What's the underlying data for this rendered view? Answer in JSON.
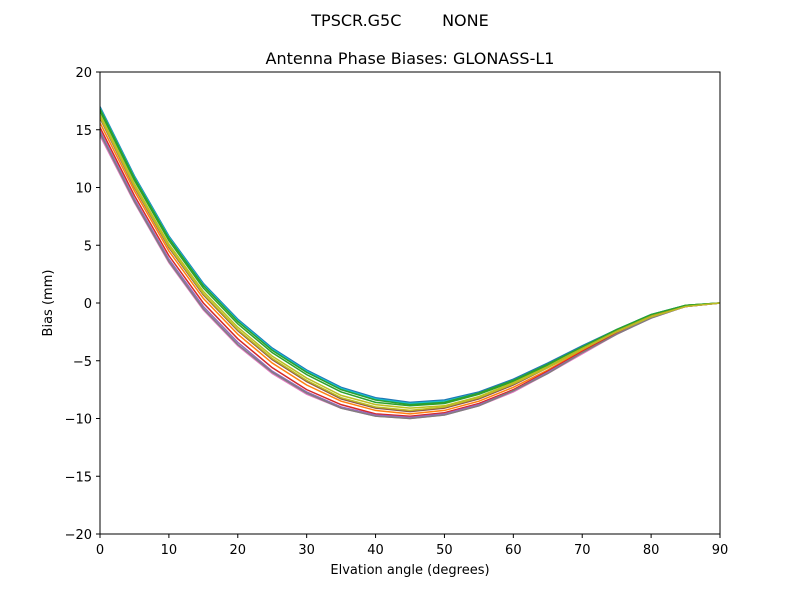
{
  "chart_data": {
    "type": "line",
    "suptitle": "TPSCR.G5C        NONE",
    "title": "Antenna Phase Biases: GLONASS-L1",
    "xlabel": "Elvation angle (degrees)",
    "ylabel": "Bias (mm)",
    "xlim": [
      0,
      90
    ],
    "ylim": [
      -20,
      20
    ],
    "xticks": [
      0,
      10,
      20,
      30,
      40,
      50,
      60,
      70,
      80,
      90
    ],
    "yticks": [
      -20,
      -15,
      -10,
      -5,
      0,
      5,
      10,
      15,
      20
    ],
    "xtick_labels": [
      "0",
      "10",
      "20",
      "30",
      "40",
      "50",
      "60",
      "70",
      "80",
      "90"
    ],
    "ytick_labels": [
      "−20",
      "−15",
      "−10",
      "−5",
      "0",
      "5",
      "10",
      "15",
      "20"
    ],
    "grid": false,
    "x": [
      0,
      5,
      10,
      15,
      20,
      25,
      30,
      35,
      40,
      45,
      50,
      55,
      60,
      65,
      70,
      75,
      80,
      85,
      90
    ],
    "series": [
      {
        "color": "#1f77b4",
        "values": [
          17.0,
          11.0,
          5.8,
          1.7,
          -1.4,
          -3.9,
          -5.8,
          -7.3,
          -8.2,
          -8.6,
          -8.4,
          -7.7,
          -6.6,
          -5.2,
          -3.7,
          -2.3,
          -1.0,
          -0.2,
          0.0
        ]
      },
      {
        "color": "#17becf",
        "values": [
          16.9,
          10.9,
          5.7,
          1.6,
          -1.5,
          -4.0,
          -5.9,
          -7.4,
          -8.3,
          -8.7,
          -8.5,
          -7.8,
          -6.7,
          -5.3,
          -3.8,
          -2.3,
          -1.0,
          -0.2,
          0.0
        ]
      },
      {
        "color": "#2ca02c",
        "values": [
          16.6,
          10.6,
          5.4,
          1.3,
          -1.8,
          -4.3,
          -6.2,
          -7.7,
          -8.6,
          -8.9,
          -8.7,
          -7.9,
          -6.8,
          -5.4,
          -3.9,
          -2.4,
          -1.1,
          -0.2,
          0.0
        ]
      },
      {
        "color": "#bcbd22",
        "values": [
          16.3,
          10.3,
          5.1,
          1.0,
          -2.1,
          -4.6,
          -6.5,
          -8.0,
          -8.8,
          -9.1,
          -8.9,
          -8.1,
          -6.9,
          -5.5,
          -3.9,
          -2.4,
          -1.1,
          -0.2,
          0.0
        ]
      },
      {
        "color": "#8c564b",
        "values": [
          16.0,
          10.0,
          4.8,
          0.7,
          -2.4,
          -4.9,
          -6.8,
          -8.3,
          -9.1,
          -9.4,
          -9.1,
          -8.3,
          -7.1,
          -5.6,
          -4.0,
          -2.5,
          -1.2,
          -0.3,
          0.0
        ]
      },
      {
        "color": "#ff7f0e",
        "values": [
          15.6,
          9.7,
          4.5,
          0.4,
          -2.7,
          -5.2,
          -7.1,
          -8.5,
          -9.3,
          -9.6,
          -9.3,
          -8.5,
          -7.3,
          -5.8,
          -4.1,
          -2.6,
          -1.2,
          -0.3,
          0.0
        ]
      },
      {
        "color": "#d62728",
        "values": [
          15.2,
          9.3,
          4.1,
          0.0,
          -3.1,
          -5.6,
          -7.5,
          -8.8,
          -9.6,
          -9.8,
          -9.5,
          -8.7,
          -7.5,
          -5.9,
          -4.2,
          -2.6,
          -1.2,
          -0.3,
          0.0
        ]
      },
      {
        "color": "#9467bd",
        "values": [
          14.9,
          9.0,
          3.8,
          -0.3,
          -3.4,
          -5.9,
          -7.7,
          -9.0,
          -9.7,
          -9.9,
          -9.6,
          -8.8,
          -7.6,
          -6.0,
          -4.3,
          -2.7,
          -1.3,
          -0.3,
          0.0
        ]
      },
      {
        "color": "#e377c2",
        "values": [
          14.5,
          8.7,
          3.5,
          -0.6,
          -3.7,
          -6.1,
          -7.9,
          -9.1,
          -9.8,
          -10.0,
          -9.7,
          -8.9,
          -7.7,
          -6.1,
          -4.4,
          -2.7,
          -1.3,
          -0.3,
          0.0
        ]
      },
      {
        "color": "#7f7f7f",
        "values": [
          14.7,
          8.8,
          3.6,
          -0.5,
          -3.6,
          -6.0,
          -7.8,
          -9.1,
          -9.8,
          -10.0,
          -9.7,
          -8.9,
          -7.6,
          -6.1,
          -4.3,
          -2.7,
          -1.3,
          -0.3,
          0.0
        ]
      },
      {
        "color": "#2ca02c",
        "values": [
          16.8,
          10.8,
          5.6,
          1.5,
          -1.6,
          -4.1,
          -6.0,
          -7.5,
          -8.4,
          -8.8,
          -8.6,
          -7.8,
          -6.7,
          -5.3,
          -3.8,
          -2.3,
          -1.0,
          -0.2,
          0.0
        ]
      },
      {
        "color": "#bcbd22",
        "values": [
          16.1,
          10.1,
          4.9,
          0.8,
          -2.3,
          -4.8,
          -6.7,
          -8.2,
          -9.0,
          -9.3,
          -9.0,
          -8.2,
          -7.0,
          -5.6,
          -4.0,
          -2.5,
          -1.2,
          -0.3,
          0.0
        ]
      }
    ]
  }
}
